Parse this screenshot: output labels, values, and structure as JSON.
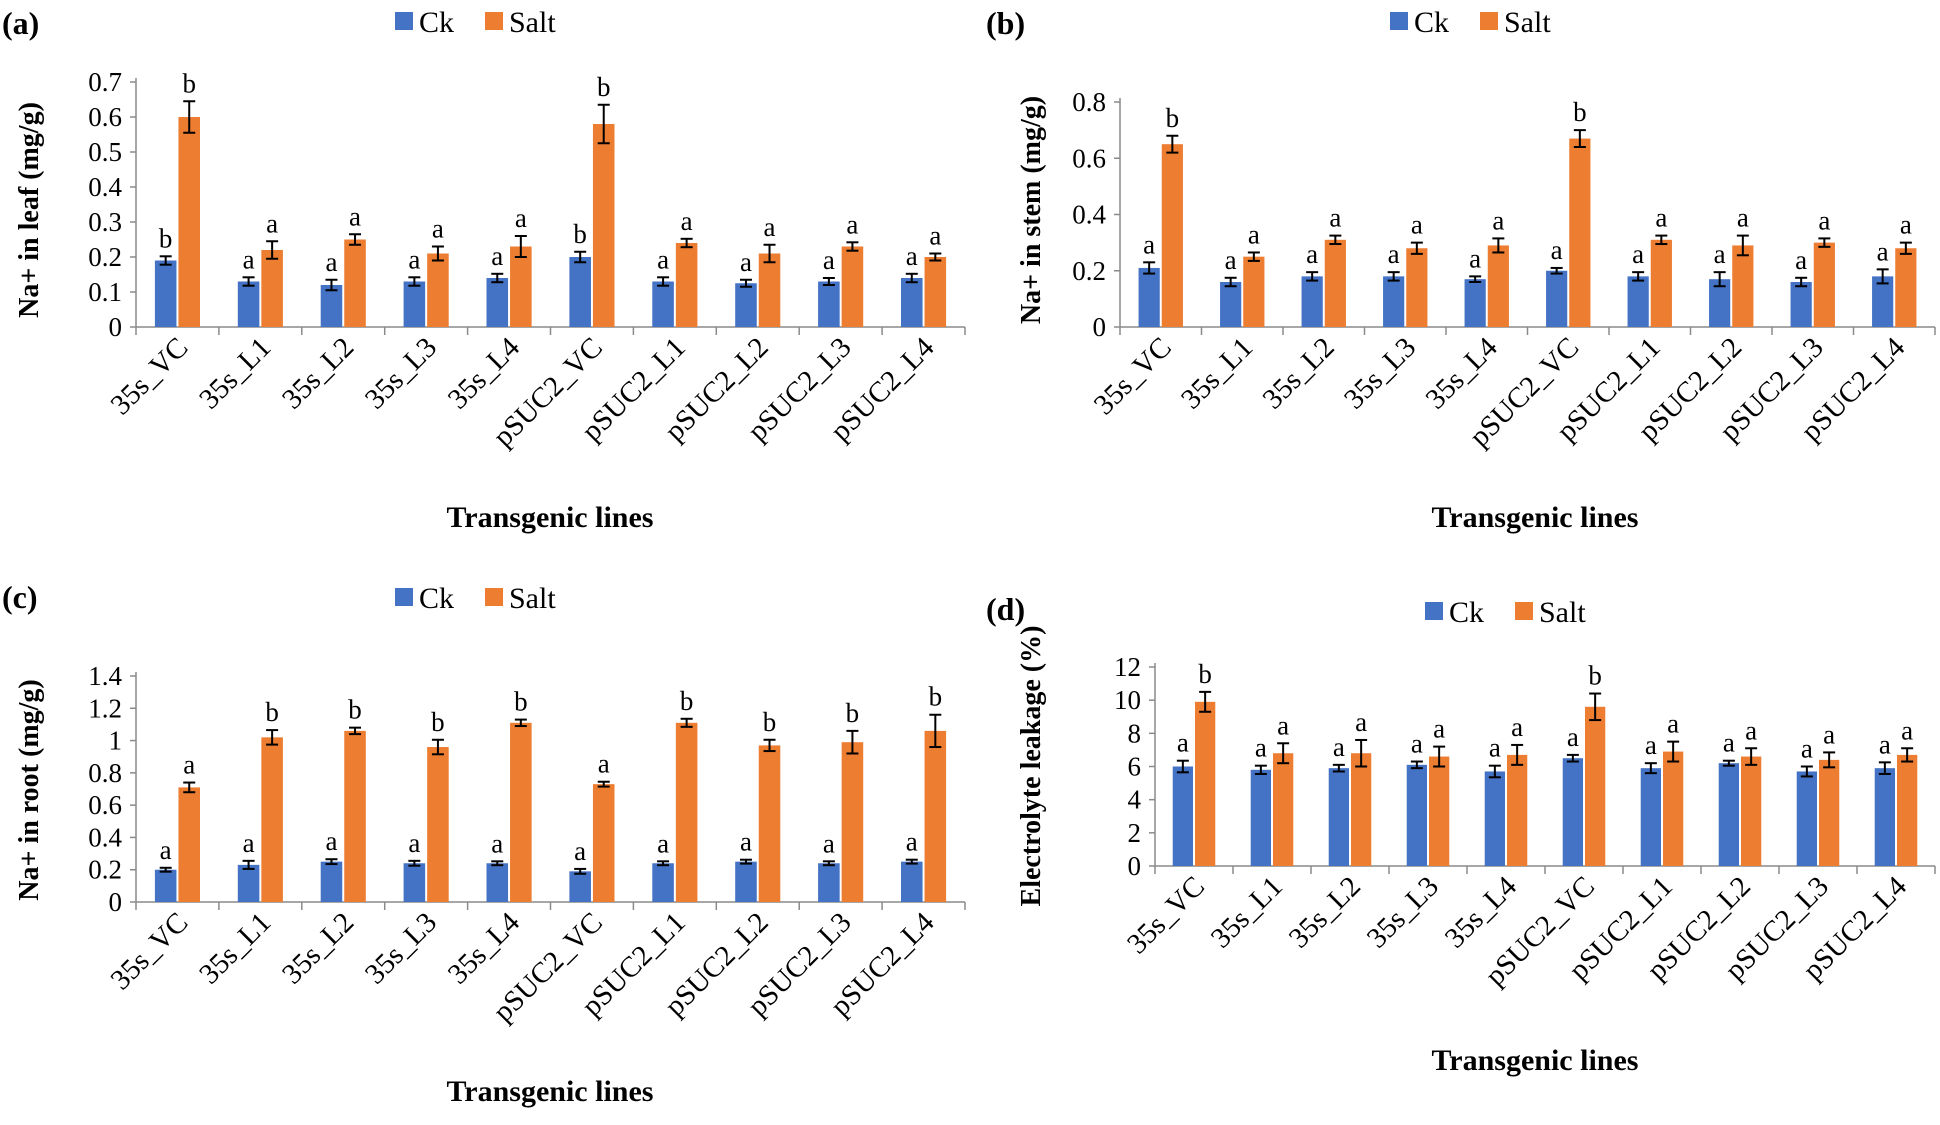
{
  "colors": {
    "ck": "#4472C4",
    "salt": "#ED7D31"
  },
  "chart_data": [
    {
      "type": "bar",
      "panel_label": "(a)",
      "title": "",
      "legend": [
        "Ck",
        "Salt"
      ],
      "xlabel": "Transgenic lines",
      "ylabel": "Na+ in leaf (mg/g)",
      "ylim": [
        0,
        0.7
      ],
      "yticks": [
        "0",
        "0.1",
        "0.2",
        "0.3",
        "0.4",
        "0.5",
        "0.6",
        "0.7"
      ],
      "categories": [
        "35s_VC",
        "35s_L1",
        "35s_L2",
        "35s_L3",
        "35s_L4",
        "pSUC2_VC",
        "pSUC2_L1",
        "pSUC2_L2",
        "pSUC2_L3",
        "pSUC2_L4"
      ],
      "series": [
        {
          "name": "Ck",
          "values": [
            0.19,
            0.13,
            0.12,
            0.13,
            0.14,
            0.2,
            0.13,
            0.125,
            0.13,
            0.14
          ],
          "errors": [
            0.012,
            0.012,
            0.015,
            0.012,
            0.012,
            0.015,
            0.012,
            0.01,
            0.01,
            0.012
          ],
          "labels": [
            "b",
            "a",
            "a",
            "a",
            "a",
            "b",
            "a",
            "a",
            "a",
            "a"
          ]
        },
        {
          "name": "Salt",
          "values": [
            0.6,
            0.22,
            0.25,
            0.21,
            0.23,
            0.58,
            0.24,
            0.21,
            0.23,
            0.2
          ],
          "errors": [
            0.045,
            0.025,
            0.015,
            0.02,
            0.03,
            0.055,
            0.012,
            0.025,
            0.012,
            0.01
          ],
          "labels": [
            "b",
            "a",
            "a",
            "a",
            "a",
            "b",
            "a",
            "a",
            "a",
            "a"
          ]
        }
      ]
    },
    {
      "type": "bar",
      "panel_label": "(b)",
      "title": "",
      "legend": [
        "Ck",
        "Salt"
      ],
      "xlabel": "Transgenic lines",
      "ylabel": "Na+ in stem (mg/g)",
      "ylim": [
        0,
        0.8
      ],
      "yticks": [
        "0",
        "0.2",
        "0.4",
        "0.6",
        "0.8"
      ],
      "categories": [
        "35s_VC",
        "35s_L1",
        "35s_L2",
        "35s_L3",
        "35s_L4",
        "pSUC2_VC",
        "pSUC2_L1",
        "pSUC2_L2",
        "pSUC2_L3",
        "pSUC2_L4"
      ],
      "series": [
        {
          "name": "Ck",
          "values": [
            0.21,
            0.16,
            0.18,
            0.18,
            0.17,
            0.2,
            0.18,
            0.17,
            0.16,
            0.18
          ],
          "errors": [
            0.02,
            0.015,
            0.015,
            0.015,
            0.01,
            0.01,
            0.015,
            0.025,
            0.015,
            0.025
          ],
          "labels": [
            "a",
            "a",
            "a",
            "a",
            "a",
            "a",
            "a",
            "a",
            "a",
            "a"
          ]
        },
        {
          "name": "Salt",
          "values": [
            0.65,
            0.25,
            0.31,
            0.28,
            0.29,
            0.67,
            0.31,
            0.29,
            0.3,
            0.28
          ],
          "errors": [
            0.03,
            0.015,
            0.015,
            0.02,
            0.025,
            0.03,
            0.015,
            0.035,
            0.015,
            0.02
          ],
          "labels": [
            "b",
            "a",
            "a",
            "a",
            "a",
            "b",
            "a",
            "a",
            "a",
            "a"
          ]
        }
      ]
    },
    {
      "type": "bar",
      "panel_label": "(c)",
      "title": "",
      "legend": [
        "Ck",
        "Salt"
      ],
      "xlabel": "Transgenic lines",
      "ylabel": "Na+ in root (mg/g)",
      "ylim": [
        0,
        1.4
      ],
      "yticks": [
        "0",
        "0.2",
        "0.4",
        "0.6",
        "0.8",
        "1",
        "1.2",
        "1.4"
      ],
      "categories": [
        "35s_VC",
        "35s_L1",
        "35s_L2",
        "35s_L3",
        "35s_L4",
        "pSUC2_VC",
        "pSUC2_L1",
        "pSUC2_L2",
        "pSUC2_L3",
        "pSUC2_L4"
      ],
      "series": [
        {
          "name": "Ck",
          "values": [
            0.2,
            0.23,
            0.25,
            0.24,
            0.24,
            0.19,
            0.24,
            0.25,
            0.24,
            0.25
          ],
          "errors": [
            0.012,
            0.025,
            0.015,
            0.015,
            0.012,
            0.015,
            0.012,
            0.012,
            0.012,
            0.012
          ],
          "labels": [
            "a",
            "a",
            "a",
            "a",
            "a",
            "a",
            "a",
            "a",
            "a",
            "a"
          ]
        },
        {
          "name": "Salt",
          "values": [
            0.71,
            1.02,
            1.06,
            0.96,
            1.11,
            0.73,
            1.11,
            0.97,
            0.99,
            1.06
          ],
          "errors": [
            0.03,
            0.045,
            0.02,
            0.045,
            0.02,
            0.015,
            0.025,
            0.035,
            0.07,
            0.1
          ],
          "labels": [
            "a",
            "b",
            "b",
            "b",
            "b",
            "a",
            "b",
            "b",
            "b",
            "b"
          ]
        }
      ]
    },
    {
      "type": "bar",
      "panel_label": "(d)",
      "title": "",
      "legend": [
        "Ck",
        "Salt"
      ],
      "xlabel": "Transgenic lines",
      "ylabel": "Electrolyte leakage (%)",
      "ylim": [
        0,
        12
      ],
      "yticks": [
        "0",
        "2",
        "4",
        "6",
        "8",
        "10",
        "12"
      ],
      "categories": [
        "35s_VC",
        "35s_L1",
        "35s_L2",
        "35s_L3",
        "35s_L4",
        "pSUC2_VC",
        "pSUC2_L1",
        "pSUC2_L2",
        "pSUC2_L3",
        "pSUC2_L4"
      ],
      "series": [
        {
          "name": "Ck",
          "values": [
            6.0,
            5.8,
            5.9,
            6.1,
            5.7,
            6.5,
            5.9,
            6.2,
            5.7,
            5.9
          ],
          "errors": [
            0.35,
            0.25,
            0.2,
            0.2,
            0.35,
            0.2,
            0.3,
            0.15,
            0.3,
            0.35
          ],
          "labels": [
            "a",
            "a",
            "a",
            "a",
            "a",
            "a",
            "a",
            "a",
            "a",
            "a"
          ]
        },
        {
          "name": "Salt",
          "values": [
            9.9,
            6.8,
            6.8,
            6.6,
            6.7,
            9.6,
            6.9,
            6.6,
            6.4,
            6.7
          ],
          "errors": [
            0.6,
            0.6,
            0.8,
            0.6,
            0.6,
            0.8,
            0.6,
            0.5,
            0.45,
            0.4
          ],
          "labels": [
            "b",
            "a",
            "a",
            "a",
            "a",
            "b",
            "a",
            "a",
            "a",
            "a"
          ]
        }
      ]
    }
  ]
}
